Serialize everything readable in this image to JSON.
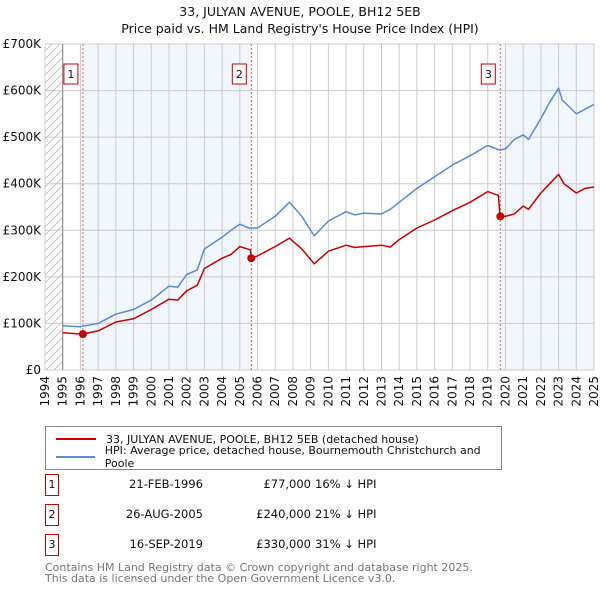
{
  "chart_data": {
    "type": "line",
    "title": "33, JULYAN AVENUE, POOLE, BH12 5EB",
    "subtitle": "Price paid vs. HM Land Registry's House Price Index (HPI)",
    "xlim": [
      1994,
      2025
    ],
    "ylim": [
      0,
      700000
    ],
    "x_ticks": [
      "1994",
      "1995",
      "1996",
      "1997",
      "1998",
      "1999",
      "2000",
      "2001",
      "2002",
      "2003",
      "2004",
      "2005",
      "2006",
      "2007",
      "2008",
      "2009",
      "2010",
      "2011",
      "2012",
      "2013",
      "2014",
      "2015",
      "2016",
      "2017",
      "2018",
      "2019",
      "2020",
      "2021",
      "2022",
      "2023",
      "2024",
      "2025"
    ],
    "y_ticks": [
      {
        "v": 0,
        "label": "£0"
      },
      {
        "v": 100000,
        "label": "£100K"
      },
      {
        "v": 200000,
        "label": "£200K"
      },
      {
        "v": 300000,
        "label": "£300K"
      },
      {
        "v": 400000,
        "label": "£400K"
      },
      {
        "v": 500000,
        "label": "£500K"
      },
      {
        "v": 600000,
        "label": "£600K"
      },
      {
        "v": 700000,
        "label": "£700K"
      }
    ],
    "grid": true,
    "series": [
      {
        "name": "33, JULYAN AVENUE, POOLE, BH12 5EB (detached house)",
        "color": "#cc0000",
        "points": [
          [
            1995,
            80
          ],
          [
            1996.1,
            77
          ],
          [
            1997,
            84
          ],
          [
            1998,
            103
          ],
          [
            1999,
            110
          ],
          [
            2000,
            130
          ],
          [
            2001,
            152
          ],
          [
            2001.5,
            150
          ],
          [
            2002,
            170
          ],
          [
            2002.6,
            182
          ],
          [
            2003,
            218
          ],
          [
            2004,
            240
          ],
          [
            2004.5,
            248
          ],
          [
            2005,
            265
          ],
          [
            2005.6,
            258
          ],
          [
            2005.65,
            240
          ],
          [
            2006,
            245
          ],
          [
            2007,
            265
          ],
          [
            2007.8,
            283
          ],
          [
            2008.5,
            260
          ],
          [
            2009.2,
            228
          ],
          [
            2010,
            255
          ],
          [
            2011,
            268
          ],
          [
            2011.5,
            263
          ],
          [
            2012,
            265
          ],
          [
            2013,
            268
          ],
          [
            2013.5,
            264
          ],
          [
            2014,
            280
          ],
          [
            2015,
            305
          ],
          [
            2016,
            322
          ],
          [
            2017,
            342
          ],
          [
            2018,
            360
          ],
          [
            2019,
            383
          ],
          [
            2019.6,
            375
          ],
          [
            2019.7,
            330
          ],
          [
            2020,
            330
          ],
          [
            2020.5,
            335
          ],
          [
            2021,
            352
          ],
          [
            2021.3,
            345
          ],
          [
            2022,
            380
          ],
          [
            2022.5,
            400
          ],
          [
            2023,
            420
          ],
          [
            2023.3,
            400
          ],
          [
            2024,
            380
          ],
          [
            2024.5,
            390
          ],
          [
            2025,
            393
          ]
        ]
      },
      {
        "name": "HPI: Average price, detached house, Bournemouth Christchurch and Poole",
        "color": "#5b8bd0",
        "points": [
          [
            1995,
            95
          ],
          [
            1996,
            93
          ],
          [
            1997,
            100
          ],
          [
            1998,
            120
          ],
          [
            1999,
            130
          ],
          [
            2000,
            150
          ],
          [
            2001,
            180
          ],
          [
            2001.5,
            178
          ],
          [
            2002,
            205
          ],
          [
            2002.6,
            215
          ],
          [
            2003,
            260
          ],
          [
            2004,
            285
          ],
          [
            2004.5,
            300
          ],
          [
            2005,
            313
          ],
          [
            2005.5,
            305
          ],
          [
            2006,
            305
          ],
          [
            2007,
            330
          ],
          [
            2007.8,
            360
          ],
          [
            2008.5,
            330
          ],
          [
            2009.2,
            288
          ],
          [
            2010,
            320
          ],
          [
            2011,
            340
          ],
          [
            2011.5,
            333
          ],
          [
            2012,
            337
          ],
          [
            2013,
            335
          ],
          [
            2013.5,
            345
          ],
          [
            2014,
            360
          ],
          [
            2015,
            390
          ],
          [
            2016,
            415
          ],
          [
            2017,
            440
          ],
          [
            2018,
            460
          ],
          [
            2019,
            482
          ],
          [
            2019.7,
            472
          ],
          [
            2020,
            475
          ],
          [
            2020.5,
            495
          ],
          [
            2021,
            505
          ],
          [
            2021.3,
            495
          ],
          [
            2022,
            540
          ],
          [
            2022.5,
            575
          ],
          [
            2023,
            605
          ],
          [
            2023.2,
            580
          ],
          [
            2024,
            550
          ],
          [
            2024.5,
            560
          ],
          [
            2025,
            570
          ]
        ]
      }
    ],
    "sales": [
      {
        "num": "1",
        "x": 1996.14,
        "price": 77000,
        "date": "21-FEB-1996",
        "price_label": "£77,000",
        "hpi": "16% ↓ HPI"
      },
      {
        "num": "2",
        "x": 2005.65,
        "price": 240000,
        "date": "26-AUG-2005",
        "price_label": "£240,000",
        "hpi": "21% ↓ HPI"
      },
      {
        "num": "3",
        "x": 2019.71,
        "price": 330000,
        "date": "16-SEP-2019",
        "price_label": "£330,000",
        "hpi": "31% ↓ HPI"
      }
    ],
    "legend_position": "below"
  },
  "legend": {
    "property": "33, JULYAN AVENUE, POOLE, BH12 5EB (detached house)",
    "hpi": "HPI: Average price, detached house, Bournemouth Christchurch and Poole"
  },
  "footer": {
    "line1": "Contains HM Land Registry data © Crown copyright and database right 2025.",
    "line2": "This data is licensed under the Open Government Licence v3.0."
  }
}
